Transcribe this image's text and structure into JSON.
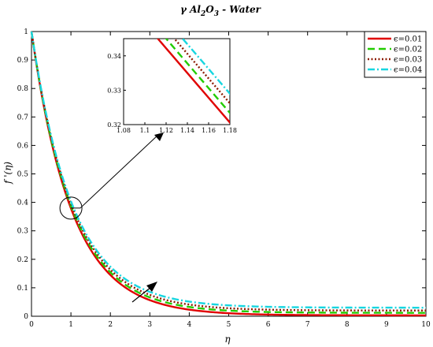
{
  "chart_data": {
    "type": "line",
    "title_parts": [
      "γ Al",
      "2",
      "O",
      "3",
      " - Water"
    ],
    "xlabel": "η",
    "ylabel": "f '(η)",
    "xlim": [
      0,
      10
    ],
    "ylim": [
      0,
      1
    ],
    "x_ticks": [
      "0",
      "1",
      "2",
      "3",
      "4",
      "5",
      "6",
      "7",
      "8",
      "9",
      "10"
    ],
    "y_ticks": [
      "0",
      "0.1",
      "0.2",
      "0.3",
      "0.4",
      "0.5",
      "0.6",
      "0.7",
      "0.8",
      "0.9",
      "1"
    ],
    "legend_position": "top-right",
    "series": [
      {
        "name": "ϵ=0.01",
        "color": "#e00000",
        "dash": "solid",
        "asymptote": 0.003,
        "decay": 0.975
      },
      {
        "name": "ϵ=0.02",
        "color": "#22cc00",
        "dash": "dashed",
        "asymptote": 0.012,
        "decay": 0.968
      },
      {
        "name": "ϵ=0.03",
        "color": "#8b1a00",
        "dash": "dotted",
        "asymptote": 0.02,
        "decay": 0.96
      },
      {
        "name": "ϵ=0.04",
        "color": "#18d6e0",
        "dash": "dashdot",
        "asymptote": 0.03,
        "decay": 0.953
      }
    ],
    "inset": {
      "xlim": [
        1.08,
        1.18
      ],
      "ylim": [
        0.32,
        0.345
      ],
      "x_ticks": [
        "1.08",
        "1.1",
        "1.12",
        "1.14",
        "1.16",
        "1.18"
      ],
      "y_ticks": [
        "0.32",
        "0.33",
        "0.34"
      ],
      "zoom_center": {
        "x": 1.0,
        "y": 0.38
      }
    },
    "annotation": "arrow indicates increasing ϵ",
    "grid": false
  }
}
